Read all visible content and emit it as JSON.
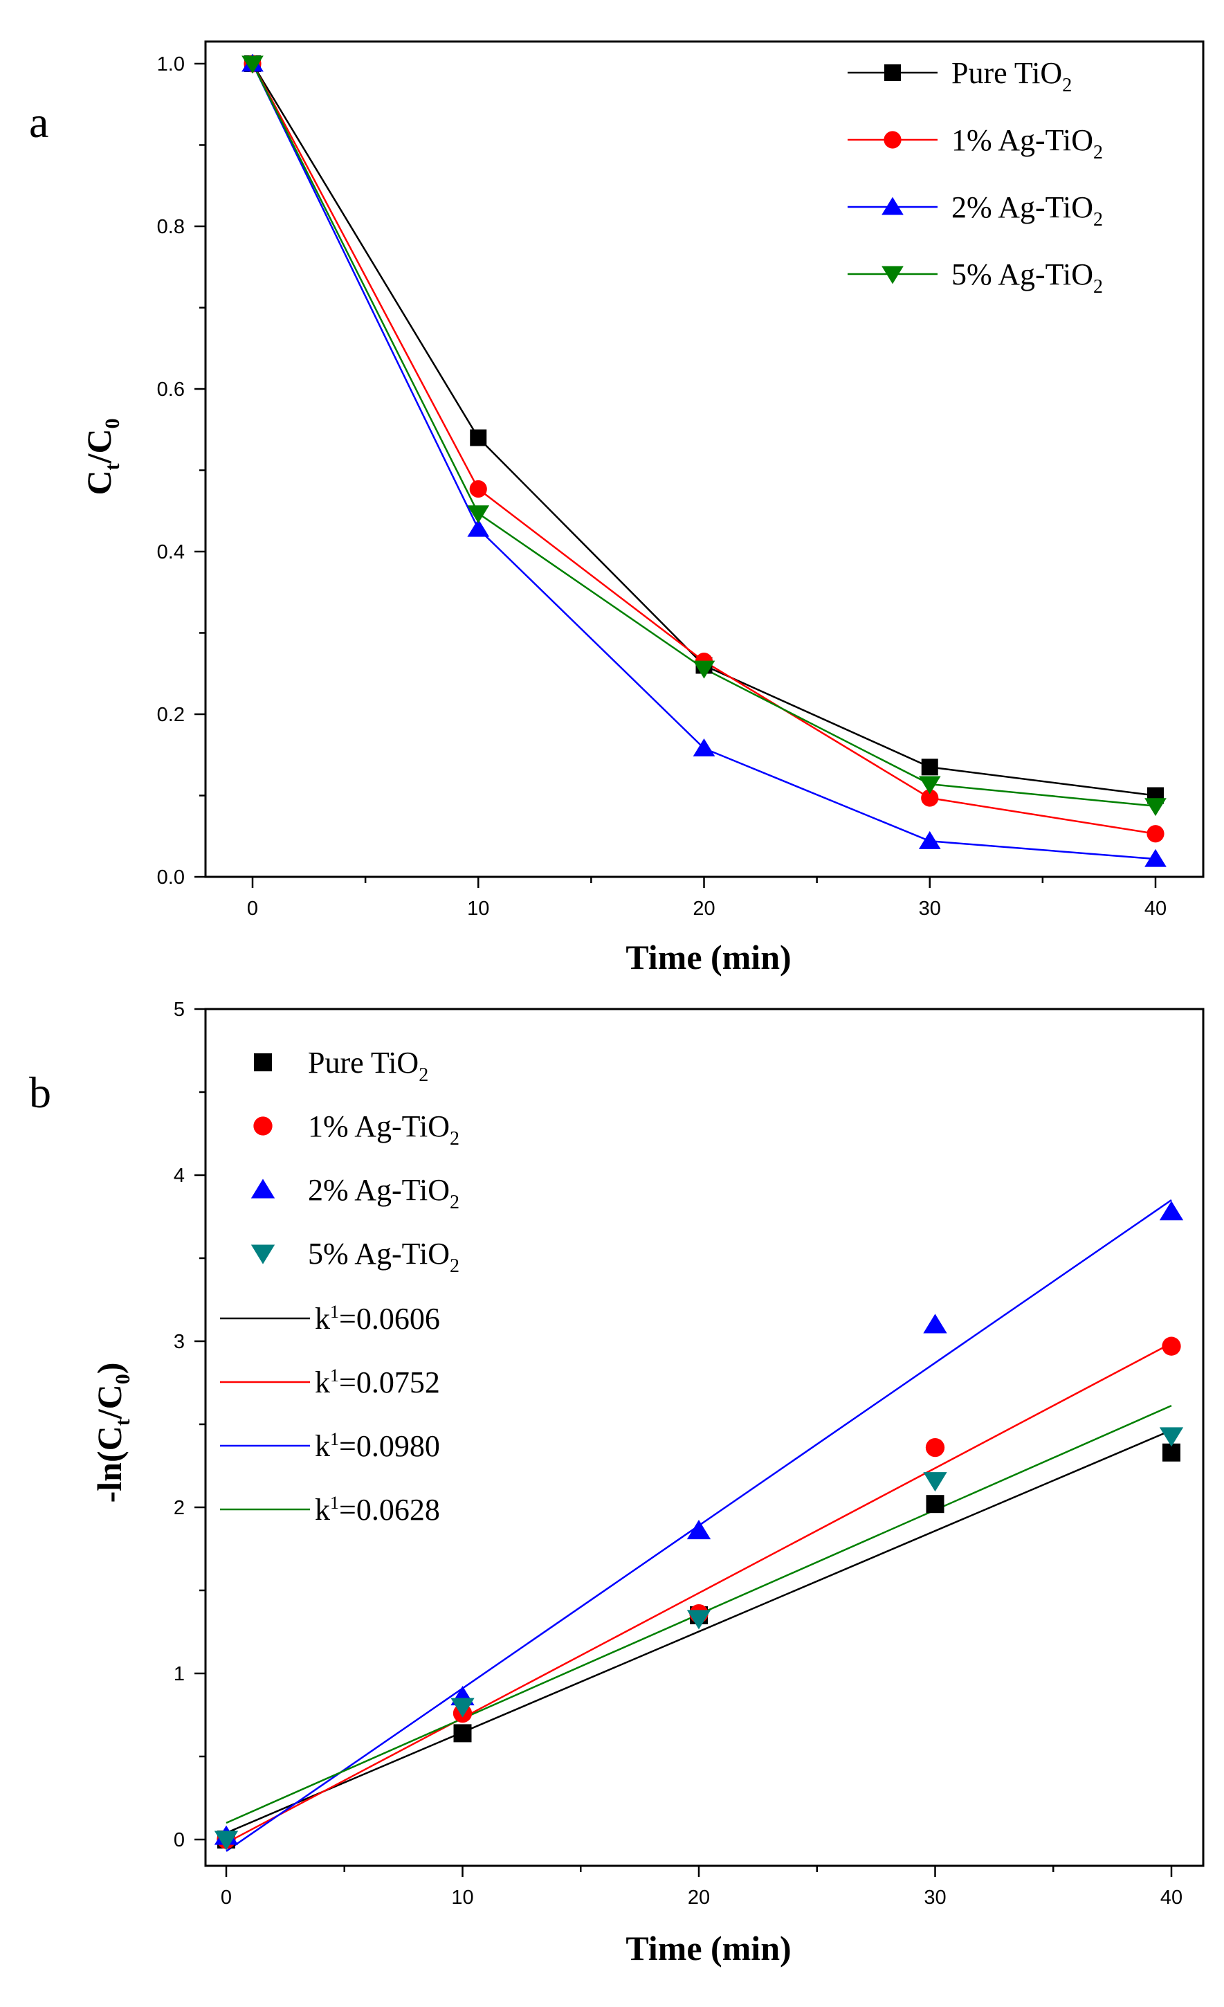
{
  "chart_data": [
    {
      "panel": "a",
      "type": "line",
      "title": "",
      "xlabel": "Time (min)",
      "ylabel_main": "C",
      "ylabel_sub1": "t",
      "ylabel_mid": "/C",
      "ylabel_sub2": "0",
      "xlim": [
        -2,
        41
      ],
      "ylim": [
        0,
        1.0
      ],
      "xticks": [
        0,
        10,
        20,
        30,
        40
      ],
      "xtick_labels": [
        "0",
        "10",
        "20",
        "30",
        "40"
      ],
      "yticks": [
        0,
        0.2,
        0.4,
        0.6,
        0.8,
        1.0
      ],
      "ytick_labels": [
        "0.0",
        "0.2",
        "0.4",
        "0.6",
        "0.8",
        "1.0"
      ],
      "legend_position": "top-right",
      "series": [
        {
          "name": "Pure TiO",
          "sub": "2",
          "color": "#000000",
          "marker": "square",
          "x": [
            0,
            10,
            20,
            30,
            40
          ],
          "y": [
            1.0,
            0.54,
            0.26,
            0.135,
            0.1
          ]
        },
        {
          "name": "1% Ag-TiO",
          "sub": "2",
          "color": "#ff0000",
          "marker": "circle",
          "x": [
            0,
            10,
            20,
            30,
            40
          ],
          "y": [
            1.0,
            0.477,
            0.265,
            0.097,
            0.053
          ]
        },
        {
          "name": "2% Ag-TiO",
          "sub": "2",
          "color": "#0000ff",
          "marker": "triangle-up",
          "x": [
            0,
            10,
            20,
            30,
            40
          ],
          "y": [
            1.0,
            0.428,
            0.158,
            0.044,
            0.022
          ]
        },
        {
          "name": "5% Ag-TiO",
          "sub": "2",
          "color": "#008000",
          "marker": "triangle-down",
          "x": [
            0,
            10,
            20,
            30,
            40
          ],
          "y": [
            1.0,
            0.447,
            0.256,
            0.114,
            0.087
          ]
        }
      ]
    },
    {
      "panel": "b",
      "type": "scatter",
      "title": "",
      "xlabel": "Time (min)",
      "ylabel_main": "-ln(C",
      "ylabel_sub1": "t",
      "ylabel_mid": "/C",
      "ylabel_sub2": "0",
      "ylabel_end": ")",
      "xlim": [
        -1,
        41
      ],
      "ylim": [
        -0.3,
        5
      ],
      "xticks": [
        0,
        10,
        20,
        30,
        40
      ],
      "xtick_labels": [
        "0",
        "10",
        "20",
        "30",
        "40"
      ],
      "yticks": [
        0,
        1,
        2,
        3,
        4,
        5
      ],
      "ytick_labels": [
        "0",
        "1",
        "2",
        "3",
        "4",
        "5"
      ],
      "legend_position": "top-left",
      "series": [
        {
          "name": "Pure TiO",
          "sub": "2",
          "color": "#000000",
          "marker": "square",
          "x": [
            0,
            10,
            20,
            30,
            40
          ],
          "y": [
            0,
            0.64,
            1.35,
            2.02,
            2.33
          ]
        },
        {
          "name": "1% Ag-TiO",
          "sub": "2",
          "color": "#ff0000",
          "marker": "circle",
          "x": [
            0,
            10,
            20,
            30,
            40
          ],
          "y": [
            0,
            0.76,
            1.36,
            2.36,
            2.97
          ]
        },
        {
          "name": "2% Ag-TiO",
          "sub": "2",
          "color": "#0000ff",
          "marker": "triangle-up",
          "x": [
            0,
            10,
            20,
            30,
            40
          ],
          "y": [
            0.02,
            0.86,
            1.86,
            3.1,
            3.78
          ]
        },
        {
          "name": "5% Ag-TiO",
          "sub": "2",
          "color": "#008080",
          "marker": "triangle-down",
          "x": [
            0,
            10,
            20,
            30,
            40
          ],
          "y": [
            0,
            0.8,
            1.33,
            2.16,
            2.43
          ]
        }
      ],
      "fits": [
        {
          "label": "k",
          "sup": "1",
          "value": "=0.0606",
          "color": "#000000",
          "slope": 0.0606,
          "intercept": 0.04
        },
        {
          "label": "k",
          "sup": "1",
          "value": "=0.0752",
          "color": "#ff0000",
          "slope": 0.0752,
          "intercept": -0.02
        },
        {
          "label": "k",
          "sup": "1",
          "value": "=0.0980",
          "color": "#0000ff",
          "slope": 0.098,
          "intercept": -0.07
        },
        {
          "label": "k",
          "sup": "1",
          "value": "=0.0628",
          "color": "#008000",
          "slope": 0.0628,
          "intercept": 0.1
        }
      ]
    }
  ]
}
